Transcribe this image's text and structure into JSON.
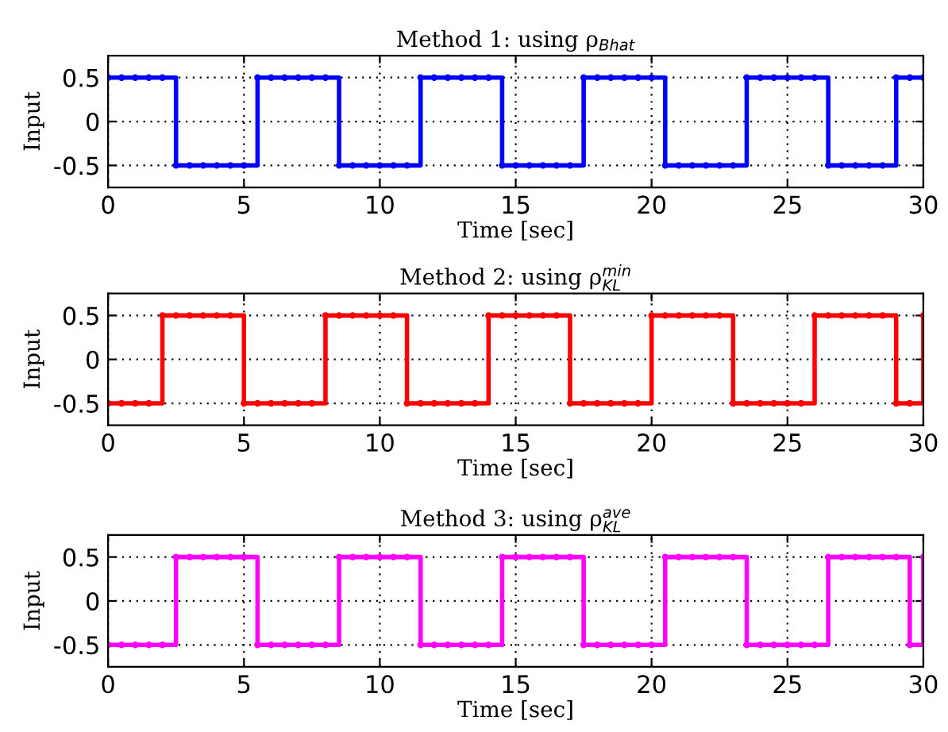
{
  "chart_data": [
    {
      "type": "step",
      "title": "Method 1: using ρ$_{Bhat}$",
      "xlabel": "Time [sec]",
      "ylabel": "Input",
      "xlim": [
        0,
        30
      ],
      "xticks": [
        0,
        5,
        10,
        15,
        20,
        25,
        30
      ],
      "ylim": [
        -0.75,
        0.75
      ],
      "yticks": [
        -0.5,
        0,
        0.5
      ],
      "grid": true,
      "marker": "circle",
      "line_style": "solid",
      "x": [
        0,
        0.5,
        1,
        1.5,
        2,
        2.5,
        3,
        3.5,
        4,
        4.5,
        5,
        5.5,
        6,
        6.5,
        7,
        7.5,
        8,
        8.5,
        9,
        9.5,
        10,
        10.5,
        11,
        11.5,
        12,
        12.5,
        13,
        13.5,
        14,
        14.5,
        15,
        15.5,
        16,
        16.5,
        17,
        17.5,
        18,
        18.5,
        19,
        19.5,
        20,
        20.5,
        21,
        21.5,
        22,
        22.5,
        23,
        23.5,
        24,
        24.5,
        25,
        25.5,
        26,
        26.5,
        27,
        27.5,
        28,
        28.5,
        29,
        29.5,
        30
      ],
      "series": [
        {
          "color": "#0000ff",
          "values": [
            0.5,
            0.5,
            0.5,
            0.5,
            0.5,
            -0.5,
            -0.5,
            -0.5,
            -0.5,
            -0.5,
            -0.5,
            0.5,
            0.5,
            0.5,
            0.5,
            0.5,
            0.5,
            -0.5,
            -0.5,
            -0.5,
            -0.5,
            -0.5,
            -0.5,
            0.5,
            0.5,
            0.5,
            0.5,
            0.5,
            0.5,
            -0.5,
            -0.5,
            -0.5,
            -0.5,
            -0.5,
            -0.5,
            0.5,
            0.5,
            0.5,
            0.5,
            0.5,
            0.5,
            -0.5,
            -0.5,
            -0.5,
            -0.5,
            -0.5,
            -0.5,
            0.5,
            0.5,
            0.5,
            0.5,
            0.5,
            0.5,
            -0.5,
            -0.5,
            -0.5,
            -0.5,
            -0.5,
            0.5,
            0.5,
            0.5
          ]
        }
      ]
    },
    {
      "type": "step",
      "title": "Method 2: using ρ$^{min}$$_{KL}$",
      "xlabel": "Time [sec]",
      "ylabel": "Input",
      "xlim": [
        0,
        30
      ],
      "xticks": [
        0,
        5,
        10,
        15,
        20,
        25,
        30
      ],
      "ylim": [
        -0.75,
        0.75
      ],
      "yticks": [
        -0.5,
        0,
        0.5
      ],
      "grid": true,
      "marker": "circle",
      "line_style": "solid",
      "x": [
        0,
        0.5,
        1,
        1.5,
        2,
        2.5,
        3,
        3.5,
        4,
        4.5,
        5,
        5.5,
        6,
        6.5,
        7,
        7.5,
        8,
        8.5,
        9,
        9.5,
        10,
        10.5,
        11,
        11.5,
        12,
        12.5,
        13,
        13.5,
        14,
        14.5,
        15,
        15.5,
        16,
        16.5,
        17,
        17.5,
        18,
        18.5,
        19,
        19.5,
        20,
        20.5,
        21,
        21.5,
        22,
        22.5,
        23,
        23.5,
        24,
        24.5,
        25,
        25.5,
        26,
        26.5,
        27,
        27.5,
        28,
        28.5,
        29,
        29.5,
        30
      ],
      "series": [
        {
          "color": "#ff0000",
          "values": [
            -0.5,
            -0.5,
            -0.5,
            -0.5,
            0.5,
            0.5,
            0.5,
            0.5,
            0.5,
            0.5,
            -0.5,
            -0.5,
            -0.5,
            -0.5,
            -0.5,
            -0.5,
            0.5,
            0.5,
            0.5,
            0.5,
            0.5,
            0.5,
            -0.5,
            -0.5,
            -0.5,
            -0.5,
            -0.5,
            -0.5,
            0.5,
            0.5,
            0.5,
            0.5,
            0.5,
            0.5,
            -0.5,
            -0.5,
            -0.5,
            -0.5,
            -0.5,
            -0.5,
            0.5,
            0.5,
            0.5,
            0.5,
            0.5,
            0.5,
            -0.5,
            -0.5,
            -0.5,
            -0.5,
            -0.5,
            -0.5,
            0.5,
            0.5,
            0.5,
            0.5,
            0.5,
            0.5,
            -0.5,
            -0.5,
            0.5
          ]
        }
      ]
    },
    {
      "type": "step",
      "title": "Method 3: using ρ$^{ave}$$_{KL}$",
      "xlabel": "Time [sec]",
      "ylabel": "Input",
      "xlim": [
        0,
        30
      ],
      "xticks": [
        0,
        5,
        10,
        15,
        20,
        25,
        30
      ],
      "ylim": [
        -0.75,
        0.75
      ],
      "yticks": [
        -0.5,
        0,
        0.5
      ],
      "grid": true,
      "marker": "circle",
      "line_style": "solid",
      "x": [
        0,
        0.5,
        1,
        1.5,
        2,
        2.5,
        3,
        3.5,
        4,
        4.5,
        5,
        5.5,
        6,
        6.5,
        7,
        7.5,
        8,
        8.5,
        9,
        9.5,
        10,
        10.5,
        11,
        11.5,
        12,
        12.5,
        13,
        13.5,
        14,
        14.5,
        15,
        15.5,
        16,
        16.5,
        17,
        17.5,
        18,
        18.5,
        19,
        19.5,
        20,
        20.5,
        21,
        21.5,
        22,
        22.5,
        23,
        23.5,
        24,
        24.5,
        25,
        25.5,
        26,
        26.5,
        27,
        27.5,
        28,
        28.5,
        29,
        29.5,
        30
      ],
      "series": [
        {
          "color": "#ff00ff",
          "values": [
            -0.5,
            -0.5,
            -0.5,
            -0.5,
            -0.5,
            0.5,
            0.5,
            0.5,
            0.5,
            0.5,
            0.5,
            -0.5,
            -0.5,
            -0.5,
            -0.5,
            -0.5,
            -0.5,
            0.5,
            0.5,
            0.5,
            0.5,
            0.5,
            0.5,
            -0.5,
            -0.5,
            -0.5,
            -0.5,
            -0.5,
            -0.5,
            0.5,
            0.5,
            0.5,
            0.5,
            0.5,
            0.5,
            -0.5,
            -0.5,
            -0.5,
            -0.5,
            -0.5,
            -0.5,
            0.5,
            0.5,
            0.5,
            0.5,
            0.5,
            0.5,
            -0.5,
            -0.5,
            -0.5,
            -0.5,
            -0.5,
            -0.5,
            0.5,
            0.5,
            0.5,
            0.5,
            0.5,
            0.5,
            -0.5,
            0.5
          ]
        }
      ]
    }
  ]
}
